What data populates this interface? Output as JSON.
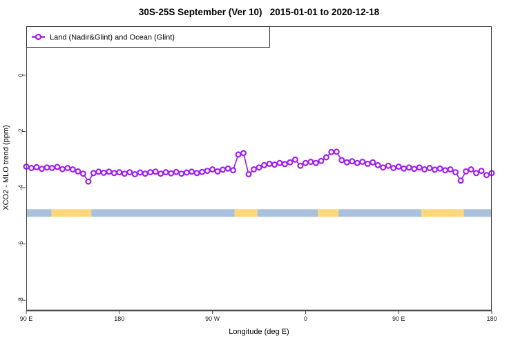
{
  "chart_data": {
    "type": "line",
    "title": "30S-25S September (Ver 10)   2015-01-01 to 2020-12-18",
    "xlabel": "Longitude (deg E)",
    "ylabel": "XCO2 - MLO trend (ppm)",
    "legend_position": "topleft",
    "grid": false,
    "legend": [
      {
        "label": "Land (Nadir&Glint) and Ocean (Glint)",
        "color": "#A020F0",
        "marker": "open-circle"
      }
    ],
    "xlim": [
      90,
      540
    ],
    "ylim": [
      -8.34,
      1.74
    ],
    "x_ticks": [
      {
        "value": 90,
        "label": "90 E"
      },
      {
        "value": 180,
        "label": "180"
      },
      {
        "value": 270,
        "label": "90 W"
      },
      {
        "value": 360,
        "label": "0"
      },
      {
        "value": 450,
        "label": "90 E"
      },
      {
        "value": 540,
        "label": "180"
      }
    ],
    "y_ticks": [
      {
        "value": 0,
        "label": "0"
      },
      {
        "value": -2,
        "label": "-2"
      },
      {
        "value": -4,
        "label": "-4"
      },
      {
        "value": -6,
        "label": "-6"
      },
      {
        "value": -8,
        "label": "-8"
      }
    ],
    "series": [
      {
        "name": "Land (Nadir&Glint) and Ocean (Glint)",
        "color": "#A020F0",
        "marker": "open-circle",
        "x": [
          90,
          95,
          100,
          105,
          110,
          115,
          120,
          125,
          130,
          135,
          140,
          145,
          150,
          155,
          160,
          165,
          170,
          175,
          180,
          185,
          190,
          195,
          200,
          205,
          210,
          215,
          220,
          225,
          230,
          235,
          240,
          245,
          250,
          255,
          260,
          265,
          270,
          275,
          280,
          285,
          290,
          295,
          300,
          305,
          310,
          315,
          320,
          325,
          330,
          335,
          340,
          345,
          350,
          355,
          360,
          365,
          370,
          375,
          380,
          385,
          390,
          395,
          400,
          405,
          410,
          415,
          420,
          425,
          430,
          435,
          440,
          445,
          450,
          455,
          460,
          465,
          470,
          475,
          480,
          485,
          490,
          495,
          500,
          505,
          510,
          515,
          520,
          525,
          530,
          535,
          540
        ],
        "y": [
          -3.25,
          -3.3,
          -3.27,
          -3.33,
          -3.28,
          -3.3,
          -3.26,
          -3.34,
          -3.3,
          -3.35,
          -3.42,
          -3.5,
          -3.78,
          -3.48,
          -3.43,
          -3.47,
          -3.43,
          -3.48,
          -3.45,
          -3.5,
          -3.45,
          -3.52,
          -3.46,
          -3.5,
          -3.45,
          -3.43,
          -3.5,
          -3.45,
          -3.49,
          -3.44,
          -3.5,
          -3.46,
          -3.43,
          -3.48,
          -3.44,
          -3.4,
          -3.35,
          -3.42,
          -3.36,
          -3.32,
          -3.38,
          -2.82,
          -2.77,
          -3.52,
          -3.35,
          -3.28,
          -3.2,
          -3.15,
          -3.18,
          -3.12,
          -3.16,
          -3.1,
          -3.0,
          -3.22,
          -3.12,
          -3.08,
          -3.12,
          -3.05,
          -2.92,
          -2.73,
          -2.72,
          -3.02,
          -3.1,
          -3.06,
          -3.12,
          -3.08,
          -3.15,
          -3.1,
          -3.2,
          -3.28,
          -3.22,
          -3.3,
          -3.25,
          -3.32,
          -3.28,
          -3.33,
          -3.28,
          -3.35,
          -3.3,
          -3.36,
          -3.32,
          -3.38,
          -3.35,
          -3.45,
          -3.75,
          -3.42,
          -3.35,
          -3.48,
          -3.4,
          -3.55,
          -3.48
        ]
      }
    ],
    "surface_band": {
      "y_value": -4.9,
      "colors": {
        "ocean": "#A9C1DD",
        "land": "#FCD87B"
      },
      "segments": [
        {
          "from": 90,
          "to": 114.5,
          "type": "ocean"
        },
        {
          "from": 114.5,
          "to": 153,
          "type": "land"
        },
        {
          "from": 153,
          "to": 291.5,
          "type": "ocean"
        },
        {
          "from": 291.5,
          "to": 313.5,
          "type": "land"
        },
        {
          "from": 313.5,
          "to": 372,
          "type": "ocean"
        },
        {
          "from": 372,
          "to": 392,
          "type": "land"
        },
        {
          "from": 392,
          "to": 472,
          "type": "ocean"
        },
        {
          "from": 472,
          "to": 513,
          "type": "land"
        },
        {
          "from": 513,
          "to": 540,
          "type": "ocean"
        }
      ]
    },
    "axis_colors": {
      "box": "#444444",
      "axis_line": "#4a4a4a",
      "tick_text": "#222222"
    }
  }
}
